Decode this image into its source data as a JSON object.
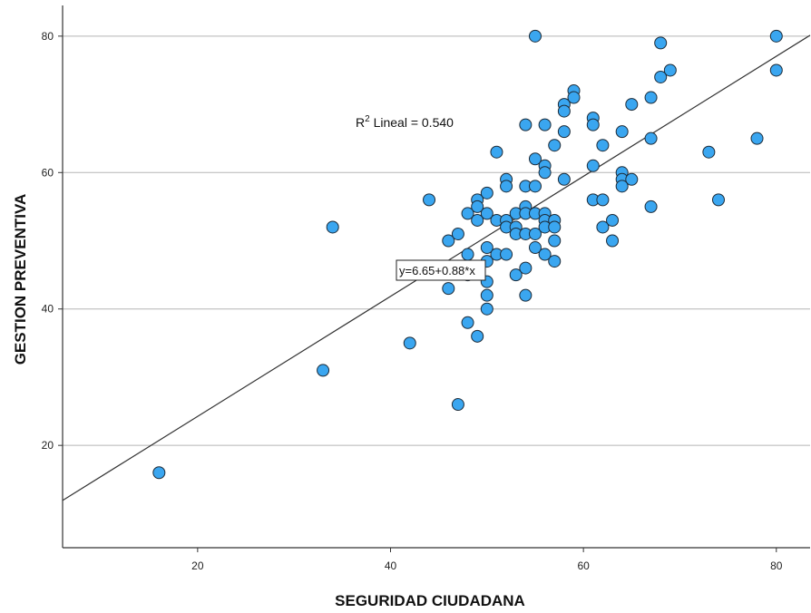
{
  "chart_data": {
    "type": "scatter",
    "xlabel": "SEGURIDAD CIUDADANA",
    "ylabel": "GESTION PREVENTIVA",
    "xlim": [
      6,
      83.5
    ],
    "ylim": [
      5,
      84.5
    ],
    "x_ticks": [
      20,
      40,
      60,
      80
    ],
    "y_ticks": [
      20,
      40,
      60,
      80
    ],
    "grid": "horizontal",
    "point_color": "#3aa6f0",
    "point_edge_color": "#1d2b38",
    "line_color": "#333333",
    "fit": {
      "intercept": 6.65,
      "slope": 0.88,
      "equation_label": "y=6.65+0.88*x",
      "r2_prefix": "R",
      "r2_sup": "2",
      "r2_text": " Lineal = 0.540"
    },
    "points": [
      [
        16,
        16
      ],
      [
        33,
        31
      ],
      [
        34,
        52
      ],
      [
        42,
        35
      ],
      [
        44,
        56
      ],
      [
        46,
        50
      ],
      [
        46,
        43
      ],
      [
        47,
        51
      ],
      [
        47,
        26
      ],
      [
        48,
        54
      ],
      [
        48,
        48
      ],
      [
        48,
        45
      ],
      [
        48,
        38
      ],
      [
        49,
        56
      ],
      [
        49,
        55
      ],
      [
        49,
        53
      ],
      [
        49,
        36
      ],
      [
        50,
        57
      ],
      [
        50,
        54
      ],
      [
        50,
        49
      ],
      [
        50,
        47
      ],
      [
        50,
        44
      ],
      [
        50,
        42
      ],
      [
        50,
        40
      ],
      [
        51,
        63
      ],
      [
        51,
        53
      ],
      [
        51,
        48
      ],
      [
        52,
        59
      ],
      [
        52,
        58
      ],
      [
        52,
        53
      ],
      [
        52,
        52
      ],
      [
        52,
        48
      ],
      [
        53,
        54
      ],
      [
        53,
        52
      ],
      [
        53,
        51
      ],
      [
        53,
        45
      ],
      [
        54,
        67
      ],
      [
        54,
        58
      ],
      [
        54,
        55
      ],
      [
        54,
        54
      ],
      [
        54,
        51
      ],
      [
        54,
        46
      ],
      [
        54,
        42
      ],
      [
        55,
        80
      ],
      [
        55,
        62
      ],
      [
        55,
        58
      ],
      [
        55,
        54
      ],
      [
        55,
        51
      ],
      [
        55,
        49
      ],
      [
        56,
        67
      ],
      [
        56,
        61
      ],
      [
        56,
        60
      ],
      [
        56,
        54
      ],
      [
        56,
        53
      ],
      [
        56,
        52
      ],
      [
        56,
        48
      ],
      [
        57,
        64
      ],
      [
        57,
        53
      ],
      [
        57,
        52
      ],
      [
        57,
        50
      ],
      [
        57,
        47
      ],
      [
        58,
        70
      ],
      [
        58,
        69
      ],
      [
        58,
        66
      ],
      [
        58,
        59
      ],
      [
        59,
        72
      ],
      [
        59,
        71
      ],
      [
        61,
        68
      ],
      [
        61,
        67
      ],
      [
        61,
        61
      ],
      [
        61,
        56
      ],
      [
        62,
        64
      ],
      [
        62,
        56
      ],
      [
        62,
        52
      ],
      [
        63,
        53
      ],
      [
        63,
        50
      ],
      [
        64,
        66
      ],
      [
        64,
        60
      ],
      [
        64,
        59
      ],
      [
        64,
        58
      ],
      [
        65,
        70
      ],
      [
        65,
        59
      ],
      [
        67,
        71
      ],
      [
        67,
        65
      ],
      [
        67,
        55
      ],
      [
        68,
        79
      ],
      [
        68,
        74
      ],
      [
        69,
        75
      ],
      [
        73,
        63
      ],
      [
        74,
        56
      ],
      [
        78,
        65
      ],
      [
        80,
        80
      ],
      [
        80,
        75
      ]
    ]
  }
}
